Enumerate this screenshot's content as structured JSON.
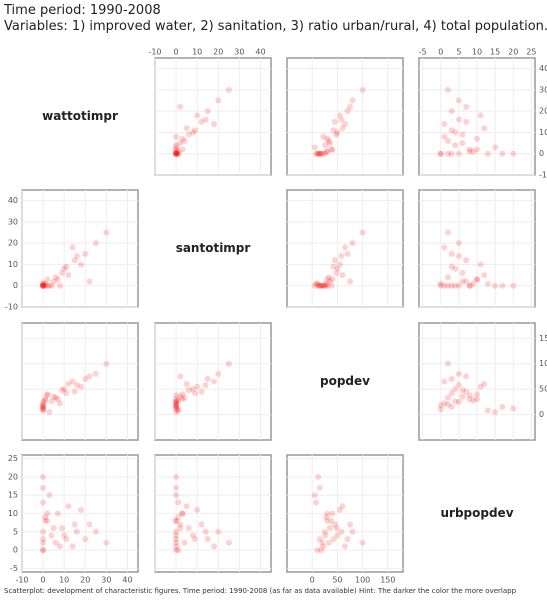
{
  "header": {
    "title": "Time period: 1990-2008",
    "subtitle": "Variables: 1) improved water, 2) sanitation, 3) ratio urban/rural, 4) total population."
  },
  "chart_data": {
    "type": "scatter-matrix",
    "color": "#ff0000",
    "footnote": "Scatterplot: development of characteristic figures. Time period: 1990-2008 (as far as data available) Hint: The darker the color the more overlapp",
    "variables": [
      {
        "name": "wattotimpr",
        "lim": [
          -10,
          45
        ],
        "ticks": [
          -10,
          0,
          10,
          20,
          30,
          40
        ],
        "values": [
          0,
          0,
          0,
          1,
          0,
          2,
          5,
          10,
          12,
          8,
          15,
          20,
          3,
          0,
          1,
          25,
          6,
          18,
          0,
          4,
          9,
          14,
          0,
          2,
          30,
          7,
          11,
          0,
          16,
          22
        ]
      },
      {
        "name": "santotimpr",
        "lim": [
          -10,
          45
        ],
        "ticks": [
          -10,
          0,
          10,
          20,
          30,
          40
        ],
        "values": [
          0,
          0,
          1,
          0,
          0,
          3,
          2,
          8,
          5,
          0,
          12,
          15,
          0,
          0,
          1,
          20,
          4,
          10,
          0,
          0,
          6,
          18,
          1,
          0,
          25,
          3,
          9,
          0,
          14,
          2
        ]
      },
      {
        "name": "popdev",
        "lim": [
          -50,
          180
        ],
        "ticks": [
          0,
          50,
          100,
          150
        ],
        "values": [
          20,
          25,
          10,
          30,
          15,
          40,
          35,
          50,
          60,
          22,
          45,
          70,
          5,
          18,
          28,
          80,
          33,
          55,
          12,
          26,
          48,
          65,
          8,
          38,
          100,
          30,
          42,
          15,
          58,
          75
        ]
      },
      {
        "name": "urbpopdev",
        "lim": [
          -6,
          26
        ],
        "ticks": [
          -5,
          0,
          5,
          10,
          15,
          20,
          25
        ],
        "values": [
          2,
          5,
          0,
          8,
          3,
          10,
          6,
          4,
          12,
          1,
          7,
          3,
          15,
          0,
          9,
          5,
          2,
          11,
          20,
          4,
          6,
          1,
          13,
          8,
          2,
          10,
          3,
          17,
          5,
          7
        ]
      }
    ]
  }
}
